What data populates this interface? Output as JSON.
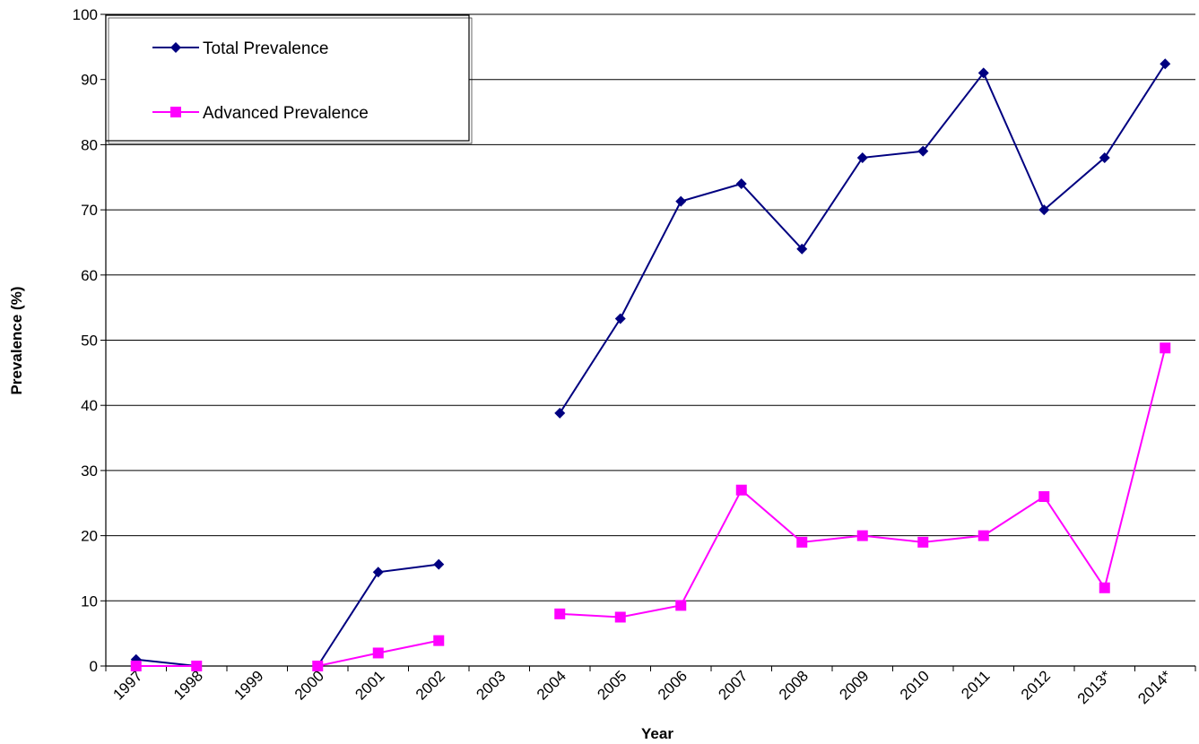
{
  "chart_data": {
    "type": "line",
    "title": "",
    "xlabel": "Year",
    "ylabel": "Prevalence (%)",
    "categories": [
      "1997",
      "1998",
      "1999",
      "2000",
      "2001",
      "2002",
      "2003",
      "2004",
      "2005",
      "2006",
      "2007",
      "2008",
      "2009",
      "2010",
      "2011",
      "2012",
      "2013*",
      "2014*"
    ],
    "ylim": [
      0,
      100
    ],
    "yticks": [
      0,
      10,
      20,
      30,
      40,
      50,
      60,
      70,
      80,
      90,
      100
    ],
    "grid": "horizontal",
    "legend_position": "top-left",
    "series": [
      {
        "name": "Total Prevalence",
        "color": "#000080",
        "marker": "diamond",
        "values": [
          1,
          0,
          null,
          0,
          14.4,
          15.6,
          null,
          38.8,
          53.3,
          71.3,
          74,
          64,
          78,
          79,
          91,
          70,
          78,
          92.4
        ]
      },
      {
        "name": "Advanced Prevalence",
        "color": "#FF00FF",
        "marker": "square",
        "values": [
          0,
          0,
          null,
          0,
          2,
          3.9,
          null,
          8,
          7.5,
          9.3,
          27,
          19,
          20,
          19,
          20,
          26,
          12,
          48.8
        ]
      }
    ]
  }
}
